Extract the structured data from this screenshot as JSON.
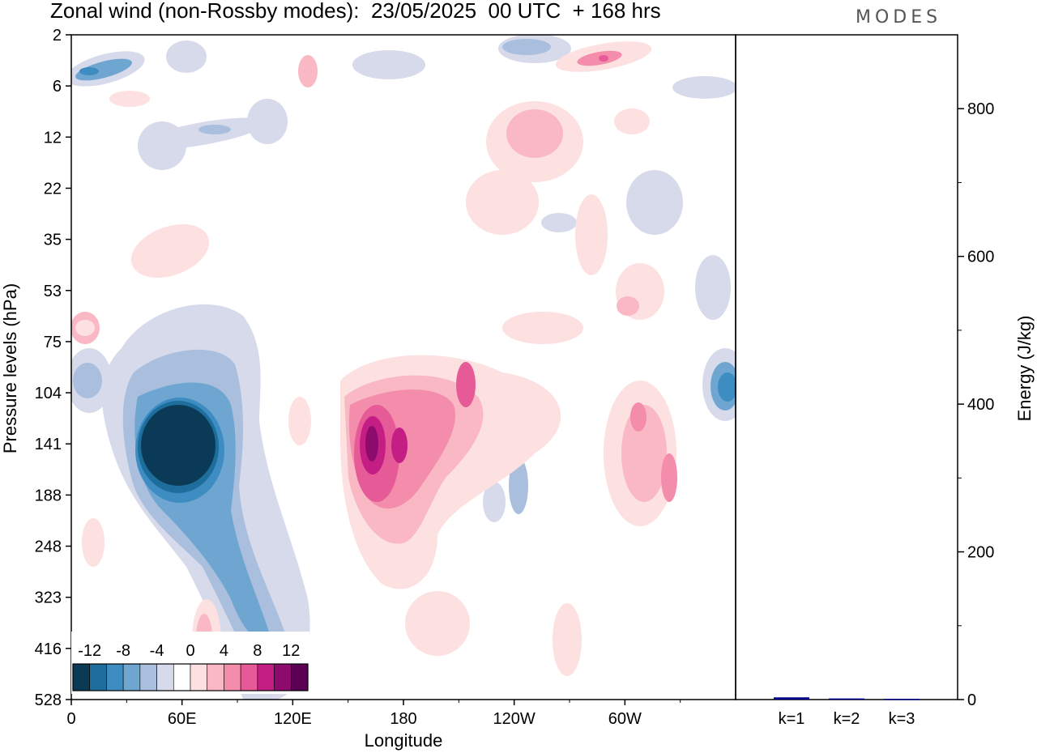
{
  "title": "Zonal wind (non-Rossby modes):  23/05/2025  00 UTC  + 168 hrs",
  "brand": "MODES",
  "chart_data": [
    {
      "type": "heatmap",
      "title": "Zonal wind (non-Rossby modes):  23/05/2025  00 UTC  + 168 hrs",
      "xlabel": "Longitude",
      "ylabel": "Pressure levels (hPa)",
      "x_ticks": [
        "0",
        "60E",
        "120E",
        "180",
        "120W",
        "60W"
      ],
      "x_tick_degrees": [
        0,
        60,
        120,
        180,
        240,
        300
      ],
      "xlim": [
        0,
        360
      ],
      "y_ticks": [
        "2",
        "6",
        "12",
        "22",
        "35",
        "53",
        "75",
        "104",
        "141",
        "188",
        "248",
        "323",
        "416",
        "528"
      ],
      "colorbar": {
        "labels": [
          "-12",
          "-8",
          "-4",
          "0",
          "4",
          "8",
          "12"
        ],
        "levels": [
          -14,
          -12,
          -10,
          -8,
          -6,
          -4,
          -2,
          2,
          4,
          6,
          8,
          10,
          12,
          14
        ],
        "colors": [
          "#0b3a57",
          "#1d6e9c",
          "#3d8cc2",
          "#6fa6d1",
          "#a9bfdd",
          "#d6daea",
          "#ffffff",
          "#fde0e0",
          "#f9b8c4",
          "#f48cab",
          "#e65a98",
          "#c41e84",
          "#8e0b6e",
          "#5a0055"
        ]
      },
      "features": [
        {
          "kind": "min",
          "lon": 48,
          "level": "141",
          "value": -14
        },
        {
          "kind": "max",
          "lon": 163,
          "level": "141",
          "value": 13
        },
        {
          "kind": "min",
          "lon": 352,
          "level": "104",
          "value": -8
        },
        {
          "kind": "max",
          "lon": 306,
          "level": "141",
          "value": 9
        }
      ]
    },
    {
      "type": "bar",
      "ylabel": "Energy (J/kg)",
      "ylim": [
        0,
        900
      ],
      "y_ticks": [
        "0",
        "200",
        "400",
        "600",
        "800"
      ],
      "categories": [
        "k=1",
        "k=2",
        "k=3"
      ],
      "values": [
        3,
        1.5,
        1
      ],
      "bar_color": "#00008b"
    }
  ]
}
